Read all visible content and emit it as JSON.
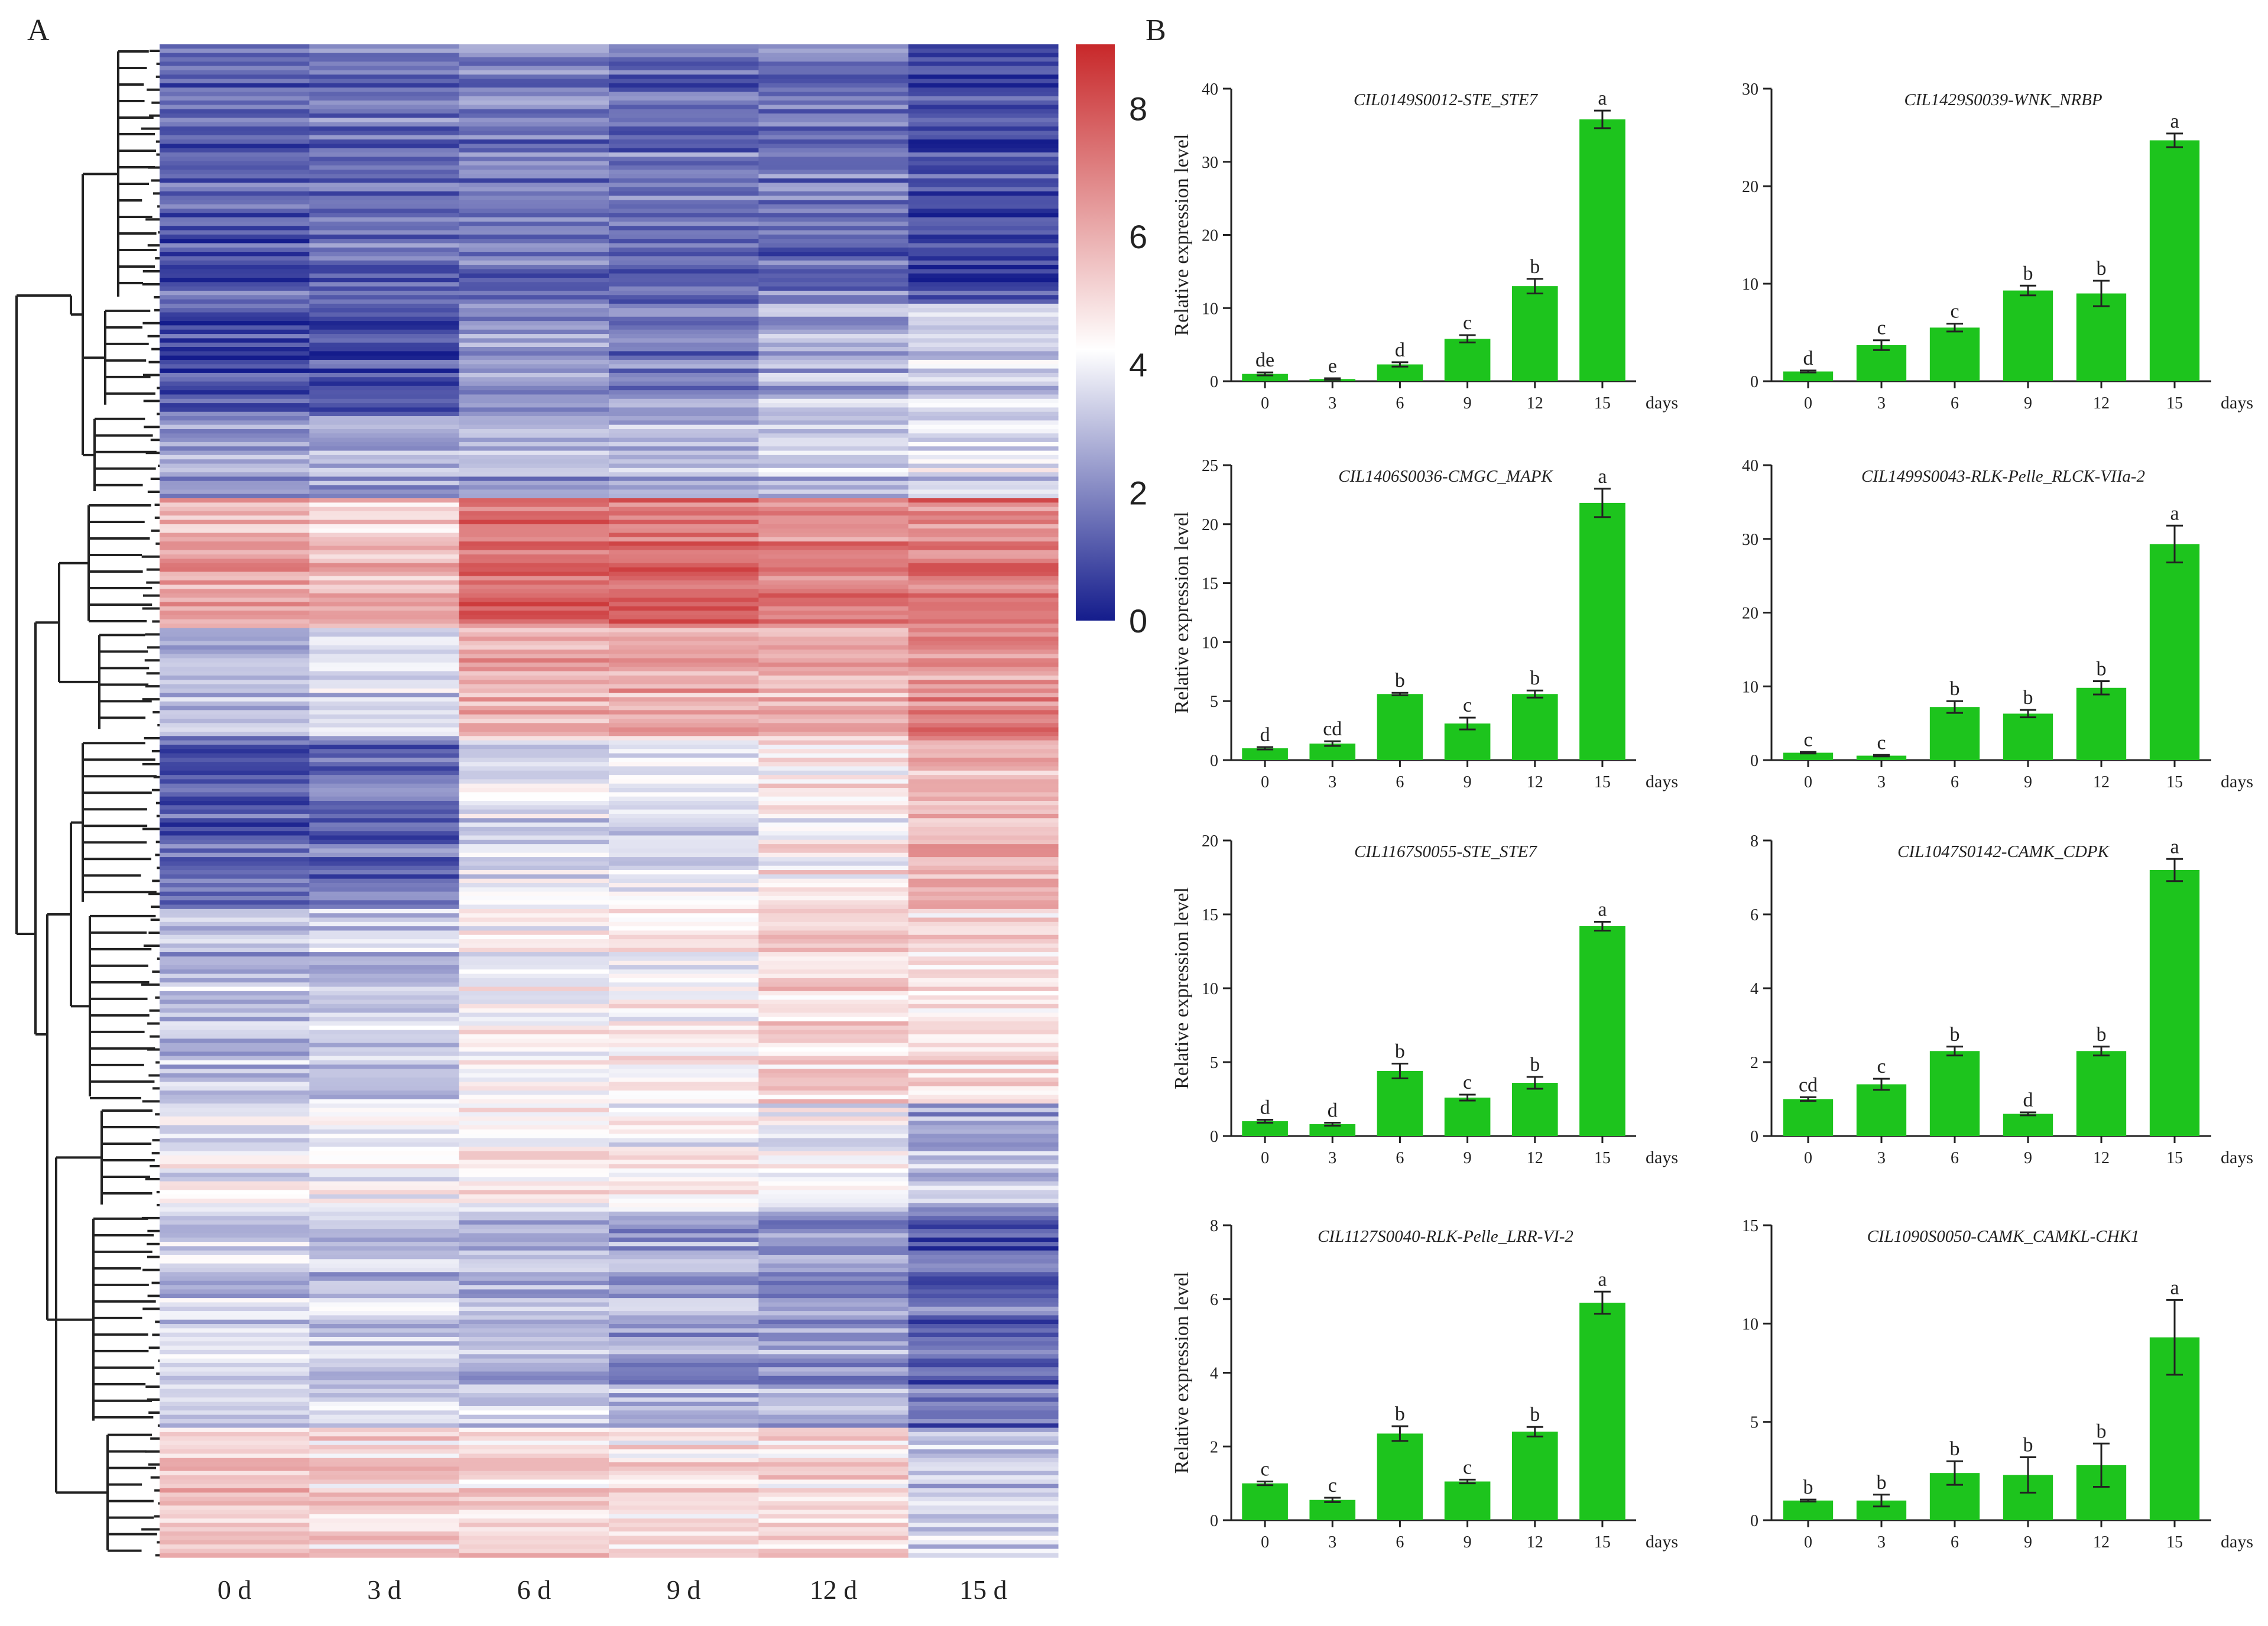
{
  "panels": {
    "a": "A",
    "b": "B"
  },
  "colors": {
    "low": "#141c8c",
    "mid": "#ffffff",
    "high": "#c8282a",
    "bar": "#1dc41d",
    "axis": "#222222"
  },
  "chart_data": [
    {
      "type": "heatmap",
      "panel": "A",
      "columns": [
        "0 d",
        "3 d",
        "6 d",
        "9 d",
        "12 d",
        "15 d"
      ],
      "colorbar": {
        "min": 0,
        "max": 9,
        "ticks": [
          0,
          2,
          4,
          6,
          8
        ]
      },
      "row_groups": [
        {
          "rows": 60,
          "values": [
            1.3,
            1.6,
            1.8,
            1.5,
            1.6,
            0.8
          ]
        },
        {
          "rows": 25,
          "values": [
            0.9,
            1.0,
            2.2,
            2.0,
            2.8,
            3.4
          ]
        },
        {
          "rows": 20,
          "values": [
            2.2,
            2.4,
            2.7,
            2.5,
            3.0,
            3.6
          ]
        },
        {
          "rows": 30,
          "values": [
            6.2,
            5.6,
            7.6,
            7.6,
            7.0,
            7.1
          ]
        },
        {
          "rows": 25,
          "values": [
            2.8,
            3.5,
            6.0,
            6.2,
            6.0,
            6.6
          ]
        },
        {
          "rows": 40,
          "values": [
            1.3,
            1.6,
            3.7,
            3.6,
            4.5,
            5.8
          ]
        },
        {
          "rows": 45,
          "values": [
            3.0,
            3.2,
            4.2,
            4.5,
            5.2,
            5.0
          ]
        },
        {
          "rows": 25,
          "values": [
            4.0,
            4.1,
            4.5,
            4.4,
            4.2,
            2.8
          ]
        },
        {
          "rows": 50,
          "values": [
            3.2,
            3.1,
            2.9,
            2.5,
            2.3,
            1.3
          ]
        },
        {
          "rows": 30,
          "values": [
            5.3,
            5.0,
            5.1,
            4.8,
            5.0,
            3.2
          ]
        }
      ]
    },
    {
      "type": "bar",
      "title": "CIL0149S0012-STE_STE7",
      "ylabel": "Relative expression level",
      "xlabel": "days",
      "categories": [
        "0",
        "3",
        "6",
        "9",
        "12",
        "15"
      ],
      "values": [
        1.0,
        0.3,
        2.3,
        5.8,
        13.0,
        35.8
      ],
      "errors": [
        0.2,
        0.1,
        0.3,
        0.5,
        1.0,
        1.2
      ],
      "letters": [
        "de",
        "e",
        "d",
        "c",
        "b",
        "a"
      ],
      "ylim": [
        0,
        40
      ],
      "yticks": [
        0,
        10,
        20,
        30,
        40
      ]
    },
    {
      "type": "bar",
      "title": "CIL1429S0039-WNK_NRBP",
      "ylabel": "",
      "xlabel": "days",
      "categories": [
        "0",
        "3",
        "6",
        "9",
        "12",
        "15"
      ],
      "values": [
        1.0,
        3.7,
        5.5,
        9.3,
        9.0,
        24.7
      ],
      "errors": [
        0.1,
        0.5,
        0.4,
        0.5,
        1.3,
        0.7
      ],
      "letters": [
        "d",
        "c",
        "c",
        "b",
        "b",
        "a"
      ],
      "ylim": [
        0,
        30
      ],
      "yticks": [
        0,
        10,
        20,
        30
      ]
    },
    {
      "type": "bar",
      "title": "CIL1406S0036-CMGC_MAPK",
      "ylabel": "Relative expression level",
      "xlabel": "days",
      "categories": [
        "0",
        "3",
        "6",
        "9",
        "12",
        "15"
      ],
      "values": [
        1.0,
        1.4,
        5.6,
        3.1,
        5.6,
        21.8
      ],
      "errors": [
        0.1,
        0.2,
        0.1,
        0.5,
        0.3,
        1.2
      ],
      "letters": [
        "d",
        "cd",
        "b",
        "c",
        "b",
        "a"
      ],
      "ylim": [
        0,
        25
      ],
      "yticks": [
        0,
        5,
        10,
        15,
        20,
        25
      ]
    },
    {
      "type": "bar",
      "title": "CIL1499S0043-RLK-Pelle_RLCK-VIIa-2",
      "ylabel": "",
      "xlabel": "days",
      "categories": [
        "0",
        "3",
        "6",
        "9",
        "12",
        "15"
      ],
      "values": [
        1.0,
        0.6,
        7.2,
        6.3,
        9.8,
        29.3
      ],
      "errors": [
        0.1,
        0.1,
        0.8,
        0.5,
        0.9,
        2.5
      ],
      "letters": [
        "c",
        "c",
        "b",
        "b",
        "b",
        "a"
      ],
      "ylim": [
        0,
        40
      ],
      "yticks": [
        0,
        10,
        20,
        30,
        40
      ]
    },
    {
      "type": "bar",
      "title": "CIL1167S0055-STE_STE7",
      "ylabel": "Relative expression level",
      "xlabel": "days",
      "categories": [
        "0",
        "3",
        "6",
        "9",
        "12",
        "15"
      ],
      "values": [
        1.0,
        0.8,
        4.4,
        2.6,
        3.6,
        14.2
      ],
      "errors": [
        0.1,
        0.1,
        0.5,
        0.2,
        0.4,
        0.3
      ],
      "letters": [
        "d",
        "d",
        "b",
        "c",
        "b",
        "a"
      ],
      "ylim": [
        0,
        20
      ],
      "yticks": [
        0,
        5,
        10,
        15,
        20
      ]
    },
    {
      "type": "bar",
      "title": "CIL1047S0142-CAMK_CDPK",
      "ylabel": "",
      "xlabel": "days",
      "categories": [
        "0",
        "3",
        "6",
        "9",
        "12",
        "15"
      ],
      "values": [
        1.0,
        1.4,
        2.3,
        0.6,
        2.3,
        7.2
      ],
      "errors": [
        0.05,
        0.15,
        0.12,
        0.04,
        0.12,
        0.3
      ],
      "letters": [
        "cd",
        "c",
        "b",
        "d",
        "b",
        "a"
      ],
      "ylim": [
        0,
        8
      ],
      "yticks": [
        0,
        2,
        4,
        6,
        8
      ]
    },
    {
      "type": "bar",
      "title": "CIL1127S0040-RLK-Pelle_LRR-VI-2",
      "ylabel": "Relative expression level",
      "xlabel": "days",
      "categories": [
        "0",
        "3",
        "6",
        "9",
        "12",
        "15"
      ],
      "values": [
        1.0,
        0.55,
        2.35,
        1.05,
        2.4,
        5.9
      ],
      "errors": [
        0.05,
        0.06,
        0.2,
        0.05,
        0.13,
        0.3
      ],
      "letters": [
        "c",
        "c",
        "b",
        "c",
        "b",
        "a"
      ],
      "ylim": [
        0,
        8
      ],
      "yticks": [
        0,
        2,
        4,
        6,
        8
      ]
    },
    {
      "type": "bar",
      "title": "CIL1090S0050-CAMK_CAMKL-CHK1",
      "ylabel": "",
      "xlabel": "days",
      "categories": [
        "0",
        "3",
        "6",
        "9",
        "12",
        "15"
      ],
      "values": [
        1.0,
        1.0,
        2.4,
        2.3,
        2.8,
        9.3
      ],
      "errors": [
        0.05,
        0.3,
        0.6,
        0.9,
        1.1,
        1.9
      ],
      "letters": [
        "b",
        "b",
        "b",
        "b",
        "b",
        "a"
      ],
      "ylim": [
        0,
        15
      ],
      "yticks": [
        0,
        5,
        10,
        15
      ]
    }
  ]
}
